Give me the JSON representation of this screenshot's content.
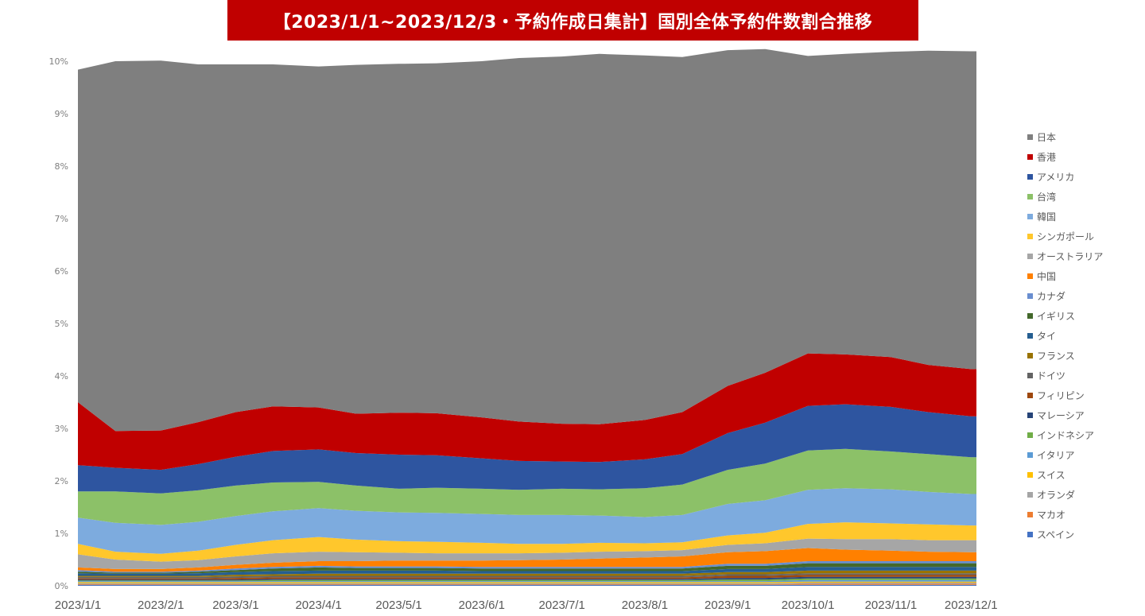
{
  "chart_data": {
    "type": "area",
    "stacked": true,
    "title": "【2023/1/1~2023/12/3・予約作成日集計】国別全体予約件数割合推移",
    "xlabel": "",
    "ylabel": "",
    "ylim": [
      0,
      10
    ],
    "y_ticks": [
      "0%",
      "1%",
      "2%",
      "3%",
      "4%",
      "5%",
      "6%",
      "7%",
      "8%",
      "9%",
      "10%"
    ],
    "x_ticks": [
      "2023/1/1",
      "2023/2/1",
      "2023/3/1",
      "2023/4/1",
      "2023/5/1",
      "2023/6/1",
      "2023/7/1",
      "2023/8/1",
      "2023/9/1",
      "2023/10/1",
      "2023/11/1",
      "2023/12/1"
    ],
    "x": [
      "2023/1/1",
      "2023/1/15",
      "2023/2/1",
      "2023/2/15",
      "2023/3/1",
      "2023/3/15",
      "2023/4/1",
      "2023/4/15",
      "2023/5/1",
      "2023/5/15",
      "2023/6/1",
      "2023/6/15",
      "2023/7/1",
      "2023/7/15",
      "2023/8/1",
      "2023/8/15",
      "2023/9/1",
      "2023/9/15",
      "2023/10/1",
      "2023/10/15",
      "2023/11/1",
      "2023/11/15",
      "2023/12/1",
      "2023/12/3"
    ],
    "grid": false,
    "legend_position": "right",
    "series": [
      {
        "name": "スペイン",
        "color": "#4472c4",
        "values": [
          0.02,
          0.02,
          0.02,
          0.02,
          0.02,
          0.02,
          0.02,
          0.02,
          0.02,
          0.02,
          0.02,
          0.02,
          0.02,
          0.02,
          0.02,
          0.02,
          0.02,
          0.02,
          0.02,
          0.02,
          0.02,
          0.02,
          0.02,
          0.02
        ]
      },
      {
        "name": "マカオ",
        "color": "#ed7d31",
        "values": [
          0.01,
          0.01,
          0.01,
          0.01,
          0.01,
          0.01,
          0.01,
          0.01,
          0.01,
          0.01,
          0.01,
          0.01,
          0.01,
          0.01,
          0.01,
          0.01,
          0.01,
          0.01,
          0.02,
          0.02,
          0.02,
          0.02,
          0.02,
          0.02
        ]
      },
      {
        "name": "オランダ",
        "color": "#a5a5a5",
        "values": [
          0.02,
          0.02,
          0.02,
          0.02,
          0.02,
          0.02,
          0.02,
          0.02,
          0.02,
          0.02,
          0.02,
          0.02,
          0.02,
          0.02,
          0.02,
          0.02,
          0.02,
          0.02,
          0.02,
          0.02,
          0.02,
          0.02,
          0.02,
          0.02
        ]
      },
      {
        "name": "スイス",
        "color": "#ffc000",
        "values": [
          0.02,
          0.02,
          0.02,
          0.02,
          0.02,
          0.02,
          0.02,
          0.02,
          0.02,
          0.02,
          0.02,
          0.02,
          0.02,
          0.02,
          0.02,
          0.02,
          0.02,
          0.02,
          0.02,
          0.02,
          0.02,
          0.02,
          0.02,
          0.02
        ]
      },
      {
        "name": "イタリア",
        "color": "#5b9bd5",
        "values": [
          0.02,
          0.02,
          0.02,
          0.02,
          0.02,
          0.02,
          0.02,
          0.02,
          0.02,
          0.02,
          0.02,
          0.02,
          0.02,
          0.02,
          0.02,
          0.02,
          0.02,
          0.02,
          0.03,
          0.03,
          0.03,
          0.03,
          0.03,
          0.03
        ]
      },
      {
        "name": "インドネシア",
        "color": "#70ad47",
        "values": [
          0.01,
          0.01,
          0.01,
          0.01,
          0.01,
          0.02,
          0.02,
          0.02,
          0.02,
          0.02,
          0.02,
          0.02,
          0.02,
          0.02,
          0.02,
          0.02,
          0.03,
          0.03,
          0.03,
          0.03,
          0.03,
          0.03,
          0.03,
          0.03
        ]
      },
      {
        "name": "マレーシア",
        "color": "#264478",
        "values": [
          0.02,
          0.02,
          0.02,
          0.02,
          0.02,
          0.02,
          0.02,
          0.02,
          0.02,
          0.02,
          0.02,
          0.02,
          0.02,
          0.02,
          0.02,
          0.02,
          0.03,
          0.03,
          0.03,
          0.03,
          0.03,
          0.03,
          0.03,
          0.03
        ]
      },
      {
        "name": "フィリピン",
        "color": "#9e480e",
        "values": [
          0.02,
          0.02,
          0.02,
          0.02,
          0.03,
          0.03,
          0.03,
          0.03,
          0.03,
          0.03,
          0.03,
          0.03,
          0.03,
          0.03,
          0.03,
          0.03,
          0.04,
          0.04,
          0.04,
          0.04,
          0.04,
          0.04,
          0.04,
          0.04
        ]
      },
      {
        "name": "ドイツ",
        "color": "#636363",
        "values": [
          0.03,
          0.03,
          0.03,
          0.03,
          0.03,
          0.03,
          0.03,
          0.03,
          0.03,
          0.03,
          0.03,
          0.03,
          0.03,
          0.03,
          0.03,
          0.03,
          0.03,
          0.03,
          0.03,
          0.03,
          0.03,
          0.03,
          0.03,
          0.03
        ]
      },
      {
        "name": "フランス",
        "color": "#997300",
        "values": [
          0.02,
          0.02,
          0.02,
          0.02,
          0.03,
          0.03,
          0.04,
          0.04,
          0.04,
          0.04,
          0.04,
          0.04,
          0.04,
          0.04,
          0.04,
          0.04,
          0.04,
          0.04,
          0.05,
          0.05,
          0.05,
          0.05,
          0.05,
          0.05
        ]
      },
      {
        "name": "タイ",
        "color": "#255e91",
        "values": [
          0.05,
          0.04,
          0.04,
          0.05,
          0.05,
          0.06,
          0.06,
          0.06,
          0.06,
          0.06,
          0.05,
          0.05,
          0.05,
          0.05,
          0.05,
          0.05,
          0.06,
          0.06,
          0.07,
          0.07,
          0.07,
          0.07,
          0.07,
          0.07
        ]
      },
      {
        "name": "イギリス",
        "color": "#43682b",
        "values": [
          0.03,
          0.02,
          0.02,
          0.03,
          0.04,
          0.05,
          0.06,
          0.05,
          0.05,
          0.05,
          0.05,
          0.05,
          0.05,
          0.05,
          0.05,
          0.05,
          0.06,
          0.06,
          0.07,
          0.07,
          0.07,
          0.07,
          0.07,
          0.07
        ]
      },
      {
        "name": "カナダ",
        "color": "#698ed0",
        "values": [
          0.03,
          0.02,
          0.02,
          0.02,
          0.03,
          0.03,
          0.03,
          0.03,
          0.03,
          0.03,
          0.03,
          0.03,
          0.03,
          0.03,
          0.03,
          0.03,
          0.04,
          0.04,
          0.04,
          0.04,
          0.04,
          0.04,
          0.04,
          0.04
        ]
      },
      {
        "name": "中国",
        "color": "#ff8000",
        "values": [
          0.05,
          0.05,
          0.05,
          0.06,
          0.07,
          0.08,
          0.09,
          0.1,
          0.11,
          0.11,
          0.12,
          0.13,
          0.14,
          0.16,
          0.18,
          0.2,
          0.22,
          0.24,
          0.25,
          0.22,
          0.2,
          0.18,
          0.17,
          0.17
        ]
      },
      {
        "name": "オーストラリア",
        "color": "#a6a6a6",
        "values": [
          0.25,
          0.18,
          0.14,
          0.14,
          0.16,
          0.18,
          0.18,
          0.17,
          0.15,
          0.14,
          0.14,
          0.13,
          0.13,
          0.13,
          0.12,
          0.12,
          0.14,
          0.15,
          0.18,
          0.2,
          0.22,
          0.22,
          0.23,
          0.23
        ]
      },
      {
        "name": "シンガポール",
        "color": "#ffc72c",
        "values": [
          0.2,
          0.15,
          0.15,
          0.18,
          0.22,
          0.25,
          0.28,
          0.24,
          0.22,
          0.22,
          0.2,
          0.18,
          0.17,
          0.17,
          0.15,
          0.15,
          0.18,
          0.2,
          0.28,
          0.32,
          0.3,
          0.3,
          0.28,
          0.28
        ]
      },
      {
        "name": "韓国",
        "color": "#7dabde",
        "values": [
          0.5,
          0.55,
          0.55,
          0.55,
          0.55,
          0.55,
          0.55,
          0.55,
          0.55,
          0.55,
          0.55,
          0.55,
          0.55,
          0.52,
          0.5,
          0.52,
          0.6,
          0.62,
          0.65,
          0.65,
          0.65,
          0.62,
          0.6,
          0.6
        ]
      },
      {
        "name": "台湾",
        "color": "#8cc168",
        "values": [
          0.5,
          0.6,
          0.6,
          0.6,
          0.58,
          0.55,
          0.5,
          0.48,
          0.45,
          0.48,
          0.48,
          0.48,
          0.5,
          0.5,
          0.55,
          0.58,
          0.65,
          0.7,
          0.75,
          0.75,
          0.72,
          0.72,
          0.7,
          0.7
        ]
      },
      {
        "name": "アメリカ",
        "color": "#2e55a0",
        "values": [
          0.5,
          0.45,
          0.45,
          0.5,
          0.55,
          0.6,
          0.62,
          0.62,
          0.65,
          0.62,
          0.58,
          0.55,
          0.52,
          0.52,
          0.55,
          0.58,
          0.7,
          0.78,
          0.85,
          0.85,
          0.85,
          0.8,
          0.78,
          0.78
        ]
      },
      {
        "name": "香港",
        "color": "#c00000",
        "values": [
          1.2,
          0.7,
          0.75,
          0.8,
          0.85,
          0.85,
          0.8,
          0.75,
          0.8,
          0.8,
          0.78,
          0.75,
          0.72,
          0.72,
          0.75,
          0.8,
          0.9,
          0.95,
          1.0,
          0.95,
          0.95,
          0.9,
          0.9,
          0.9
        ]
      },
      {
        "name": "日本",
        "color": "#7f7f7f",
        "values": [
          6.34,
          7.05,
          7.05,
          6.82,
          6.63,
          6.52,
          6.5,
          6.65,
          6.65,
          6.67,
          6.79,
          6.93,
          7.0,
          7.06,
          6.95,
          6.77,
          6.4,
          6.17,
          5.67,
          5.73,
          5.82,
          5.99,
          6.06,
          6.06
        ]
      }
    ]
  }
}
